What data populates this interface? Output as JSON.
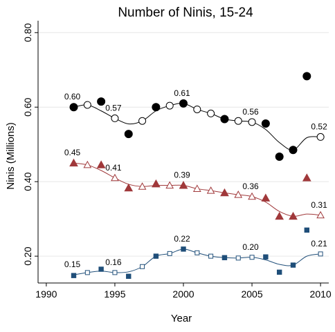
{
  "chart_data": {
    "type": "line",
    "title": "Number of Ninis, 15-24",
    "x_label": "Year",
    "y_label": "Ninis (Millions)",
    "x": [
      1992,
      1993,
      1994,
      1995,
      1996,
      1997,
      1998,
      1999,
      2000,
      2001,
      2002,
      2003,
      2004,
      2005,
      2006,
      2007,
      2008,
      2009,
      2010
    ],
    "xlim": [
      1989.4,
      2010.6
    ],
    "ylim": [
      0.128,
      0.832
    ],
    "xticks": [
      1990,
      1995,
      2000,
      2005,
      2010
    ],
    "yticks": [
      {
        "value": 0.2,
        "label": "0.20"
      },
      {
        "value": 0.4,
        "label": "0.40"
      },
      {
        "value": 0.6,
        "label": "0.60"
      },
      {
        "value": 0.8,
        "label": "0.80"
      }
    ],
    "grid": true,
    "series": [
      {
        "color": "#000000",
        "marker": "circle",
        "values": [
          0.6,
          0.606,
          0.59,
          0.57,
          0.555,
          0.563,
          0.59,
          0.604,
          0.61,
          0.594,
          0.583,
          0.568,
          0.563,
          0.56,
          0.54,
          0.505,
          0.485,
          0.518,
          0.52
        ],
        "value_labels": [
          "0.60",
          null,
          null,
          "0.57",
          null,
          null,
          null,
          null,
          "0.61",
          null,
          null,
          null,
          null,
          "0.56",
          null,
          null,
          null,
          null,
          "0.52"
        ],
        "observed": [
          0.6,
          null,
          0.615,
          null,
          0.528,
          null,
          0.6,
          null,
          0.61,
          null,
          null,
          0.568,
          null,
          null,
          0.556,
          0.467,
          0.485,
          0.683,
          null
        ]
      },
      {
        "color": "#a0383a",
        "marker": "triangle",
        "values": [
          0.45,
          0.445,
          0.43,
          0.41,
          0.393,
          0.387,
          0.39,
          0.39,
          0.39,
          0.381,
          0.376,
          0.37,
          0.365,
          0.36,
          0.345,
          0.32,
          0.307,
          0.313,
          0.31
        ],
        "value_labels": [
          "0.45",
          null,
          null,
          "0.41",
          null,
          null,
          null,
          null,
          "0.39",
          null,
          null,
          null,
          null,
          "0.36",
          null,
          null,
          null,
          null,
          "0.31"
        ],
        "observed": [
          0.45,
          null,
          0.445,
          null,
          0.383,
          null,
          0.394,
          null,
          0.39,
          null,
          null,
          0.37,
          null,
          null,
          0.356,
          0.307,
          0.307,
          0.41,
          null
        ]
      },
      {
        "color": "#1f4e79",
        "marker": "square",
        "values": [
          0.15,
          0.156,
          0.16,
          0.156,
          0.158,
          0.172,
          0.2,
          0.207,
          0.219,
          0.209,
          0.2,
          0.196,
          0.195,
          0.197,
          0.19,
          0.178,
          0.176,
          0.2,
          0.206
        ],
        "value_labels": [
          "0.15",
          null,
          null,
          "0.16",
          null,
          null,
          null,
          null,
          "0.22",
          null,
          null,
          null,
          null,
          "0.20",
          null,
          null,
          null,
          null,
          "0.21"
        ],
        "observed": [
          0.148,
          null,
          0.165,
          null,
          0.146,
          null,
          0.2,
          null,
          0.219,
          null,
          null,
          0.196,
          null,
          null,
          0.198,
          0.157,
          0.176,
          0.27,
          null
        ]
      }
    ]
  }
}
